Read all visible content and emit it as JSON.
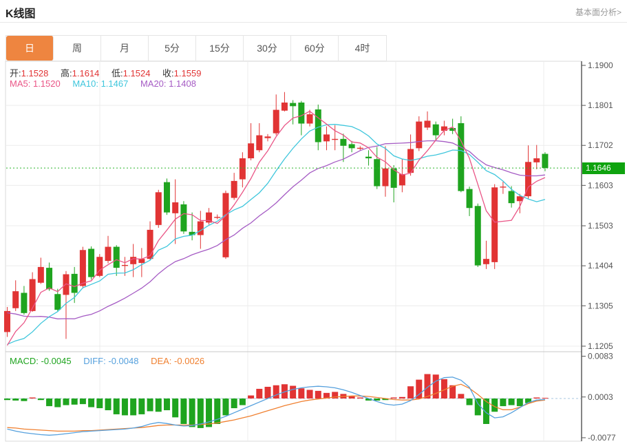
{
  "header": {
    "title": "K线图",
    "link_label": "基本面分析>"
  },
  "tabs": {
    "items": [
      "日",
      "周",
      "月",
      "5分",
      "15分",
      "30分",
      "60分",
      "4时"
    ],
    "active_index": 0
  },
  "ohlc_legend": {
    "open_label": "开:",
    "open": "1.1528",
    "high_label": "高:",
    "high": "1.1614",
    "low_label": "低:",
    "low": "1.1524",
    "close_label": "收:",
    "close": "1.1559"
  },
  "ma_legend": {
    "ma5_label": "MA5:",
    "ma5": "1.1520",
    "ma10_label": "MA10:",
    "ma10": "1.1467",
    "ma20_label": "MA20:",
    "ma20": "1.1408"
  },
  "macd_legend": {
    "macd_label": "MACD:",
    "macd": "-0.0045",
    "diff_label": "DIFF:",
    "diff": "-0.0048",
    "dea_label": "DEA:",
    "dea": "-0.0026"
  },
  "y_axis": {
    "ticks": [
      {
        "label": "1.1900",
        "value": 1.19
      },
      {
        "label": "1.1801",
        "value": 1.1801
      },
      {
        "label": "1.1702",
        "value": 1.1702
      },
      {
        "label": "1.1603",
        "value": 1.1603
      },
      {
        "label": "1.1503",
        "value": 1.1503
      },
      {
        "label": "1.1404",
        "value": 1.1404
      },
      {
        "label": "1.1305",
        "value": 1.1305
      },
      {
        "label": "1.1205",
        "value": 1.1205
      }
    ],
    "current_price": {
      "label": "1.1646",
      "value": 1.1646
    }
  },
  "macd_axis": {
    "ticks": [
      {
        "label": "0.0083",
        "value": 0.0083
      },
      {
        "label": "0.0003",
        "value": 0.0003
      },
      {
        "label": "-0.0077",
        "value": -0.0077
      }
    ]
  },
  "colors": {
    "bull_red": "#e13434",
    "bear_green": "#1fa41f",
    "ma5_pink": "#ea5586",
    "ma10_cyan": "#3ec6dc",
    "ma20_purple": "#a55bc4",
    "diff_blue": "#55a0dd",
    "dea_orange": "#f08030",
    "price_badge_green": "#0fa30f",
    "price_line_green": "#2bb32b",
    "macd_zero_line": "#a9c7e2",
    "tab_active_orange": "#ee8540",
    "grid": "#ececec",
    "frame": "#d9d9d9",
    "axis_line": "#333333",
    "tick_text": "#555555"
  },
  "chart_data": {
    "type": "candlestick",
    "title": "K线图",
    "period": "日",
    "legend_position": "top-left",
    "grid": true,
    "price_axis": {
      "side": "right",
      "min": 1.1205,
      "max": 1.19
    },
    "current_price": 1.1646,
    "candles_ohlc_format": [
      "open",
      "high",
      "low",
      "close"
    ],
    "candles": [
      [
        1.124,
        1.1302,
        1.1228,
        1.1292
      ],
      [
        1.1299,
        1.1368,
        1.1292,
        1.1341
      ],
      [
        1.1337,
        1.1354,
        1.1283,
        1.1287
      ],
      [
        1.1292,
        1.1388,
        1.129,
        1.1371
      ],
      [
        1.1362,
        1.1424,
        1.1359,
        1.1401
      ],
      [
        1.1399,
        1.1412,
        1.1342,
        1.1346
      ],
      [
        1.1334,
        1.1347,
        1.1292,
        1.1295
      ],
      [
        1.1332,
        1.1391,
        1.1223,
        1.1383
      ],
      [
        1.1384,
        1.1401,
        1.1312,
        1.1337
      ],
      [
        1.1354,
        1.1451,
        1.1348,
        1.1443
      ],
      [
        1.1446,
        1.1452,
        1.137,
        1.1376
      ],
      [
        1.1379,
        1.1433,
        1.1376,
        1.1426
      ],
      [
        1.1416,
        1.1478,
        1.141,
        1.1451
      ],
      [
        1.1451,
        1.1455,
        1.1379,
        1.1399
      ],
      [
        1.1404,
        1.1426,
        1.1379,
        1.1406
      ],
      [
        1.1408,
        1.1458,
        1.1376,
        1.1426
      ],
      [
        1.1411,
        1.1448,
        1.1376,
        1.1421
      ],
      [
        1.1421,
        1.1514,
        1.1418,
        1.1493
      ],
      [
        1.1505,
        1.1592,
        1.1498,
        1.1586
      ],
      [
        1.1611,
        1.162,
        1.153,
        1.1536
      ],
      [
        1.1534,
        1.1618,
        1.1458,
        1.1561
      ],
      [
        1.1556,
        1.1564,
        1.1483,
        1.1489
      ],
      [
        1.1488,
        1.1536,
        1.1467,
        1.148
      ],
      [
        1.148,
        1.154,
        1.1446,
        1.1514
      ],
      [
        1.1511,
        1.1547,
        1.1506,
        1.1536
      ],
      [
        1.1524,
        1.1531,
        1.1519,
        1.1525
      ],
      [
        1.1425,
        1.159,
        1.1421,
        1.1584
      ],
      [
        1.1572,
        1.1634,
        1.1567,
        1.1614
      ],
      [
        1.1618,
        1.1685,
        1.1598,
        1.167
      ],
      [
        1.167,
        1.1757,
        1.1665,
        1.1707
      ],
      [
        1.169,
        1.1757,
        1.1685,
        1.1727
      ],
      [
        1.172,
        1.173,
        1.1712,
        1.1724
      ],
      [
        1.1732,
        1.1828,
        1.1727,
        1.179
      ],
      [
        1.1788,
        1.1834,
        1.1786,
        1.1808
      ],
      [
        1.1807,
        1.1814,
        1.1754,
        1.1799
      ],
      [
        1.1808,
        1.1812,
        1.1727,
        1.1756
      ],
      [
        1.1756,
        1.179,
        1.1749,
        1.1779
      ],
      [
        1.1791,
        1.1803,
        1.169,
        1.171
      ],
      [
        1.1712,
        1.1749,
        1.169,
        1.1729
      ],
      [
        1.1717,
        1.1752,
        1.169,
        1.1718
      ],
      [
        1.1718,
        1.1731,
        1.1661,
        1.1701
      ],
      [
        1.1705,
        1.1713,
        1.1685,
        1.1695
      ],
      [
        1.1694,
        1.17,
        1.169,
        1.1696
      ],
      [
        1.1674,
        1.169,
        1.1652,
        1.167
      ],
      [
        1.1668,
        1.1698,
        1.1594,
        1.1601
      ],
      [
        1.1601,
        1.17,
        1.1575,
        1.1645
      ],
      [
        1.1645,
        1.1653,
        1.1561,
        1.1597
      ],
      [
        1.1603,
        1.1668,
        1.1586,
        1.1631
      ],
      [
        1.1634,
        1.1729,
        1.1627,
        1.1693
      ],
      [
        1.1695,
        1.1774,
        1.1688,
        1.1761
      ],
      [
        1.1746,
        1.1786,
        1.174,
        1.1763
      ],
      [
        1.1754,
        1.1761,
        1.1715,
        1.1727
      ],
      [
        1.1738,
        1.1763,
        1.1727,
        1.1749
      ],
      [
        1.1745,
        1.1768,
        1.173,
        1.1738
      ],
      [
        1.1757,
        1.1774,
        1.1586,
        1.1589
      ],
      [
        1.1594,
        1.16,
        1.1527,
        1.1547
      ],
      [
        1.1552,
        1.1558,
        1.1401,
        1.1405
      ],
      [
        1.1408,
        1.1466,
        1.1396,
        1.1421
      ],
      [
        1.1413,
        1.1606,
        1.1396,
        1.1598
      ],
      [
        1.1598,
        1.1612,
        1.1582,
        1.16
      ],
      [
        1.1589,
        1.1601,
        1.1548,
        1.1559
      ],
      [
        1.1564,
        1.1582,
        1.1534,
        1.1576
      ],
      [
        1.1576,
        1.1702,
        1.157,
        1.1661
      ],
      [
        1.166,
        1.1703,
        1.1643,
        1.167
      ],
      [
        1.1681,
        1.1685,
        1.1638,
        1.1646
      ]
    ],
    "ma_periods": [
      5,
      10,
      20
    ],
    "ma_seed_prior_closes": [
      1.1405,
      1.14,
      1.1396,
      1.1392,
      1.1388,
      1.1384,
      1.138,
      1.1374,
      1.1344,
      1.1314,
      1.1284,
      1.1254,
      1.1228,
      1.1208,
      1.119,
      1.118,
      1.117,
      1.1178,
      1.119,
      1.1205
    ],
    "macd": {
      "axis": {
        "min": -0.0077,
        "max": 0.0083,
        "zero": 0.0003
      },
      "hist": [
        -0.0003,
        -0.0004,
        -0.0005,
        0.0002,
        -0.0003,
        -0.0015,
        -0.0017,
        -0.0013,
        -0.0012,
        -0.0011,
        -0.0017,
        -0.0019,
        -0.0023,
        -0.0031,
        -0.0033,
        -0.0033,
        -0.0031,
        -0.0025,
        -0.0026,
        -0.0023,
        -0.0037,
        -0.005,
        -0.0056,
        -0.0058,
        -0.0056,
        -0.005,
        -0.0033,
        -0.0019,
        -0.0013,
        0.0006,
        0.0019,
        0.0023,
        0.0026,
        0.0028,
        0.0025,
        0.002,
        0.0017,
        0.0015,
        0.0011,
        0.0013,
        0.0009,
        0.0004,
        0.0002,
        -0.0004,
        -0.0004,
        -0.0003,
        0.0002,
        0.0003,
        0.0024,
        0.0037,
        0.0048,
        0.0047,
        0.0038,
        0.0026,
        0.0009,
        -0.0013,
        -0.0033,
        -0.005,
        -0.0026,
        -0.0015,
        -0.0013,
        -0.0015,
        -0.0009,
        0.0002,
        0.0001
      ],
      "diff": [
        -0.006,
        -0.0064,
        -0.0067,
        -0.0069,
        -0.0071,
        -0.0072,
        -0.0071,
        -0.0069,
        -0.0067,
        -0.0065,
        -0.0064,
        -0.0063,
        -0.0062,
        -0.0061,
        -0.006,
        -0.0058,
        -0.0055,
        -0.005,
        -0.0047,
        -0.0049,
        -0.0052,
        -0.0054,
        -0.0053,
        -0.005,
        -0.0046,
        -0.0041,
        -0.0035,
        -0.0028,
        -0.0021,
        -0.0014,
        -0.0007,
        0.0,
        0.0007,
        0.0013,
        0.0018,
        0.0021,
        0.0023,
        0.0024,
        0.0023,
        0.0021,
        0.0017,
        0.0012,
        0.0006,
        0.0,
        -0.0006,
        -0.0011,
        -0.0013,
        -0.0011,
        -0.0004,
        0.0008,
        0.0022,
        0.0034,
        0.0041,
        0.0042,
        0.0036,
        0.0022,
        -0.001,
        -0.0028,
        -0.0038,
        -0.0036,
        -0.0028,
        -0.0018,
        -0.0008,
        -0.0003,
        -0.0002
      ],
      "dea": [
        -0.0057,
        -0.0058,
        -0.006,
        -0.0061,
        -0.0062,
        -0.0063,
        -0.0064,
        -0.0064,
        -0.0064,
        -0.0063,
        -0.0063,
        -0.0062,
        -0.0061,
        -0.006,
        -0.0059,
        -0.0058,
        -0.0057,
        -0.0055,
        -0.0053,
        -0.0052,
        -0.0052,
        -0.0052,
        -0.0052,
        -0.0051,
        -0.005,
        -0.0048,
        -0.0045,
        -0.0042,
        -0.0038,
        -0.0034,
        -0.0029,
        -0.0024,
        -0.0019,
        -0.0014,
        -0.001,
        -0.0006,
        -0.0003,
        -0.0001,
        0.0001,
        0.0003,
        0.0004,
        0.0005,
        0.0005,
        0.0004,
        0.0002,
        0.0,
        -0.0002,
        -0.0003,
        -0.0003,
        -0.0001,
        0.0004,
        0.001,
        0.0017,
        0.0024,
        0.0028,
        0.002,
        0.0008,
        -0.0006,
        -0.0016,
        -0.0022,
        -0.0022,
        -0.0017,
        -0.001,
        -0.0005,
        -0.0003
      ]
    },
    "v_gridlines_x": [
      145,
      360,
      575,
      790
    ]
  }
}
